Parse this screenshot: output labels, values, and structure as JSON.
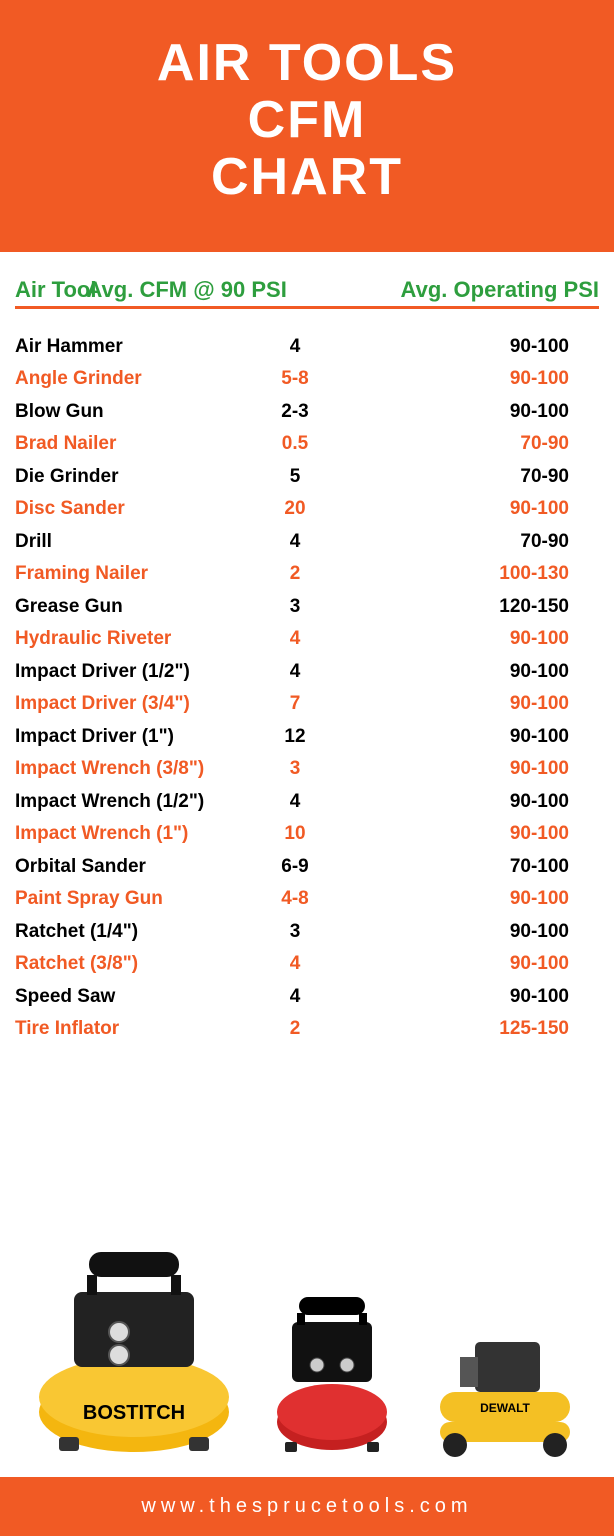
{
  "title_lines": [
    "AIR TOOLS",
    "CFM",
    "CHART"
  ],
  "columns": {
    "tool": "Air Tool",
    "cfm": "Avg. CFM @ 90 PSI",
    "psi": "Avg. Operating PSI"
  },
  "rows": [
    {
      "tool": "Air Hammer",
      "cfm": "4",
      "psi": "90-100",
      "color": "black"
    },
    {
      "tool": "Angle Grinder",
      "cfm": "5-8",
      "psi": "90-100",
      "color": "orange"
    },
    {
      "tool": "Blow Gun",
      "cfm": "2-3",
      "psi": "90-100",
      "color": "black"
    },
    {
      "tool": "Brad Nailer",
      "cfm": "0.5",
      "psi": "70-90",
      "color": "orange"
    },
    {
      "tool": "Die Grinder",
      "cfm": "5",
      "psi": "70-90",
      "color": "black"
    },
    {
      "tool": "Disc Sander",
      "cfm": "20",
      "psi": "90-100",
      "color": "orange"
    },
    {
      "tool": "Drill",
      "cfm": "4",
      "psi": "70-90",
      "color": "black"
    },
    {
      "tool": "Framing Nailer",
      "cfm": "2",
      "psi": "100-130",
      "color": "orange"
    },
    {
      "tool": "Grease Gun",
      "cfm": "3",
      "psi": "120-150",
      "color": "black"
    },
    {
      "tool": "Hydraulic Riveter",
      "cfm": "4",
      "psi": "90-100",
      "color": "orange"
    },
    {
      "tool": "Impact Driver (1/2\")",
      "cfm": "4",
      "psi": "90-100",
      "color": "black"
    },
    {
      "tool": "Impact Driver (3/4\")",
      "cfm": "7",
      "psi": "90-100",
      "color": "orange"
    },
    {
      "tool": "Impact Driver (1\")",
      "cfm": "12",
      "psi": "90-100",
      "color": "black"
    },
    {
      "tool": "Impact Wrench (3/8\")",
      "cfm": "3",
      "psi": "90-100",
      "color": "orange"
    },
    {
      "tool": "Impact Wrench (1/2\")",
      "cfm": "4",
      "psi": "90-100",
      "color": "black"
    },
    {
      "tool": "Impact Wrench (1\")",
      "cfm": "10",
      "psi": "90-100",
      "color": "orange"
    },
    {
      "tool": "Orbital Sander",
      "cfm": "6-9",
      "psi": "70-100",
      "color": "black"
    },
    {
      "tool": "Paint Spray Gun",
      "cfm": "4-8",
      "psi": "90-100",
      "color": "orange"
    },
    {
      "tool": "Ratchet (1/4\")",
      "cfm": "3",
      "psi": "90-100",
      "color": "black"
    },
    {
      "tool": "Ratchet (3/8\")",
      "cfm": "4",
      "psi": "90-100",
      "color": "orange"
    },
    {
      "tool": "Speed Saw",
      "cfm": "4",
      "psi": "90-100",
      "color": "black"
    },
    {
      "tool": "Tire Inflator",
      "cfm": "2",
      "psi": "125-150",
      "color": "orange"
    }
  ],
  "compressors": {
    "a_label": "BOSTITCH",
    "c_label": "DEWALT"
  },
  "footer": "www.thesprucetools.com",
  "colors": {
    "brand": "#f15a24",
    "header_green": "#2e9e3e",
    "comp_a_tank": "#f4b60f",
    "comp_a_top": "#222222",
    "comp_b_tank": "#c52020",
    "comp_b_top": "#111111",
    "comp_c_tank": "#f4c024",
    "comp_c_top": "#333333"
  }
}
